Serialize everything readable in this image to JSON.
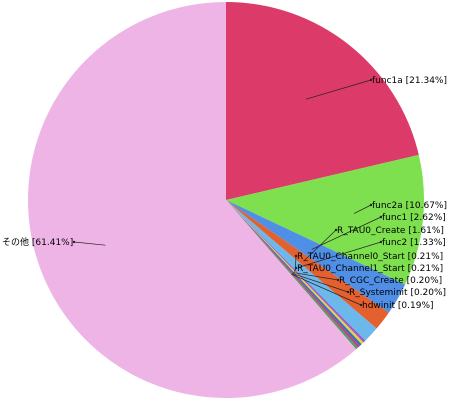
{
  "chart_data": {
    "type": "pie",
    "categories": [
      "func1a",
      "func2a",
      "func1",
      "R_TAU0_Create",
      "func2",
      "R_TAU0_Channel0_Start",
      "R_TAU0_Channel1_Start",
      "R_CGC_Create",
      "R_Systeminit",
      "hdwinit",
      "その他"
    ],
    "values": [
      21.34,
      10.67,
      2.62,
      1.61,
      1.33,
      0.21,
      0.21,
      0.2,
      0.2,
      0.19,
      61.41
    ],
    "value_labels": [
      "[21.34%]",
      "[10.67%]",
      "[2.62%]",
      "[1.61%]",
      "[1.33%]",
      "[0.21%]",
      "[0.21%]",
      "[0.20%]",
      "[0.20%]",
      "[0.19%]",
      "[61.41%]"
    ],
    "colors": [
      "#dc3a68",
      "#7ee04e",
      "#4f8fe6",
      "#e4602e",
      "#6cb8ea",
      "#9a5ad0",
      "#e8d040",
      "#3070c0",
      "#c04080",
      "#50a060",
      "#efb4e6"
    ]
  }
}
